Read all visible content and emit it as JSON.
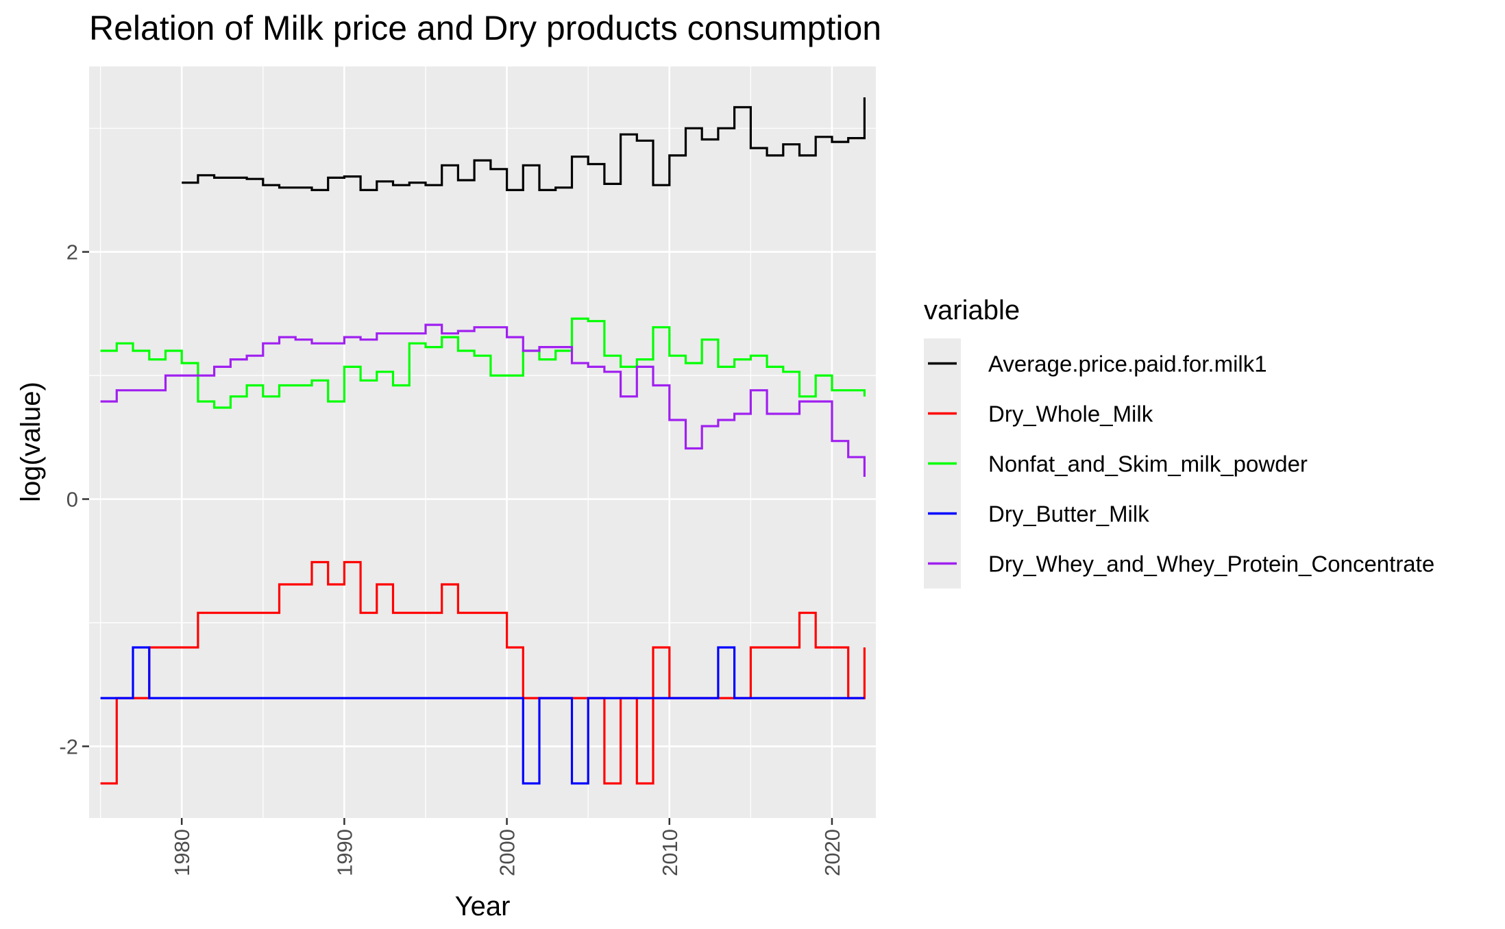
{
  "chart_data": {
    "type": "line",
    "step": "post",
    "title": "Relation of Milk price and Dry products consumption",
    "xlabel": "Year",
    "ylabel": "log(value)",
    "xlim": [
      1974.3,
      2022.7
    ],
    "ylim": [
      -2.58,
      3.5
    ],
    "xticks": [
      1980,
      1990,
      2000,
      2010,
      2020
    ],
    "yticks": [
      -2,
      0,
      2
    ],
    "grid": true,
    "legend": {
      "title": "variable",
      "position": "right"
    },
    "series": [
      {
        "name": "Average.price.paid.for.milk1",
        "color": "#000000",
        "x": [
          1980,
          1981,
          1982,
          1983,
          1984,
          1985,
          1986,
          1987,
          1988,
          1989,
          1990,
          1991,
          1992,
          1993,
          1994,
          1995,
          1996,
          1997,
          1998,
          1999,
          2000,
          2001,
          2002,
          2003,
          2004,
          2005,
          2006,
          2007,
          2008,
          2009,
          2010,
          2011,
          2012,
          2013,
          2014,
          2015,
          2016,
          2017,
          2018,
          2019,
          2020,
          2021,
          2022
        ],
        "values": [
          2.56,
          2.62,
          2.6,
          2.6,
          2.59,
          2.54,
          2.52,
          2.52,
          2.5,
          2.6,
          2.61,
          2.5,
          2.57,
          2.54,
          2.56,
          2.54,
          2.7,
          2.58,
          2.74,
          2.67,
          2.5,
          2.7,
          2.5,
          2.52,
          2.77,
          2.71,
          2.55,
          2.95,
          2.9,
          2.54,
          2.78,
          3.0,
          2.91,
          3.0,
          3.17,
          2.84,
          2.78,
          2.87,
          2.78,
          2.93,
          2.89,
          2.92,
          3.25
        ]
      },
      {
        "name": "Dry_Whole_Milk",
        "color": "#ff0000",
        "x": [
          1975,
          1976,
          1977,
          1978,
          1979,
          1980,
          1981,
          1982,
          1983,
          1984,
          1985,
          1986,
          1987,
          1988,
          1989,
          1990,
          1991,
          1992,
          1993,
          1994,
          1995,
          1996,
          1997,
          1998,
          1999,
          2000,
          2001,
          2002,
          2003,
          2004,
          2005,
          2006,
          2007,
          2008,
          2009,
          2010,
          2011,
          2012,
          2013,
          2014,
          2015,
          2016,
          2017,
          2018,
          2019,
          2020,
          2021,
          2022
        ],
        "values": [
          -2.3,
          -1.61,
          -1.61,
          -1.2,
          -1.2,
          -1.2,
          -0.92,
          -0.92,
          -0.92,
          -0.92,
          -0.92,
          -0.69,
          -0.69,
          -0.51,
          -0.69,
          -0.51,
          -0.92,
          -0.69,
          -0.92,
          -0.92,
          -0.92,
          -0.69,
          -0.92,
          -0.92,
          -0.92,
          -1.2,
          -1.61,
          -1.61,
          -1.61,
          -1.61,
          -1.61,
          -2.3,
          -1.61,
          -2.3,
          -1.2,
          -1.61,
          -1.61,
          -1.61,
          -1.61,
          -1.61,
          -1.2,
          -1.2,
          -1.2,
          -0.92,
          -1.2,
          -1.2,
          -1.61,
          -1.2
        ]
      },
      {
        "name": "Nonfat_and_Skim_milk_powder",
        "color": "#00ff00",
        "x": [
          1975,
          1976,
          1977,
          1978,
          1979,
          1980,
          1981,
          1982,
          1983,
          1984,
          1985,
          1986,
          1987,
          1988,
          1989,
          1990,
          1991,
          1992,
          1993,
          1994,
          1995,
          1996,
          1997,
          1998,
          1999,
          2000,
          2001,
          2002,
          2003,
          2004,
          2005,
          2006,
          2007,
          2008,
          2009,
          2010,
          2011,
          2012,
          2013,
          2014,
          2015,
          2016,
          2017,
          2018,
          2019,
          2020,
          2021,
          2022
        ],
        "values": [
          1.2,
          1.26,
          1.2,
          1.13,
          1.2,
          1.1,
          0.79,
          0.74,
          0.83,
          0.92,
          0.83,
          0.92,
          0.92,
          0.96,
          0.79,
          1.07,
          0.96,
          1.03,
          0.92,
          1.26,
          1.23,
          1.31,
          1.2,
          1.16,
          1.0,
          1.0,
          1.2,
          1.13,
          1.2,
          1.46,
          1.44,
          1.16,
          1.07,
          1.13,
          1.39,
          1.16,
          1.1,
          1.29,
          1.07,
          1.13,
          1.16,
          1.07,
          1.03,
          0.83,
          1.0,
          0.88,
          0.88,
          0.83
        ]
      },
      {
        "name": "Dry_Butter_Milk",
        "color": "#0000ff",
        "x": [
          1975,
          1976,
          1977,
          1978,
          1979,
          1980,
          1981,
          1982,
          1983,
          1984,
          1985,
          1986,
          1987,
          1988,
          1989,
          1990,
          1991,
          1992,
          1993,
          1994,
          1995,
          1996,
          1997,
          1998,
          1999,
          2000,
          2001,
          2002,
          2003,
          2004,
          2005,
          2006,
          2007,
          2008,
          2009,
          2010,
          2011,
          2012,
          2013,
          2014,
          2015,
          2016,
          2017,
          2018,
          2019,
          2020,
          2021,
          2022
        ],
        "values": [
          -1.61,
          -1.61,
          -1.2,
          -1.61,
          -1.61,
          -1.61,
          -1.61,
          -1.61,
          -1.61,
          -1.61,
          -1.61,
          -1.61,
          -1.61,
          -1.61,
          -1.61,
          -1.61,
          -1.61,
          -1.61,
          -1.61,
          -1.61,
          -1.61,
          -1.61,
          -1.61,
          -1.61,
          -1.61,
          -1.61,
          -2.3,
          -1.61,
          -1.61,
          -2.3,
          -1.61,
          -1.61,
          -1.61,
          -1.61,
          -1.61,
          -1.61,
          -1.61,
          -1.61,
          -1.2,
          -1.61,
          -1.61,
          -1.61,
          -1.61,
          -1.61,
          -1.61,
          -1.61,
          -1.61,
          -1.61
        ]
      },
      {
        "name": "Dry_Whey_and_Whey_Protein_Concentrate",
        "color": "#a020f0",
        "x": [
          1975,
          1976,
          1977,
          1978,
          1979,
          1980,
          1981,
          1982,
          1983,
          1984,
          1985,
          1986,
          1987,
          1988,
          1989,
          1990,
          1991,
          1992,
          1993,
          1994,
          1995,
          1996,
          1997,
          1998,
          1999,
          2000,
          2001,
          2002,
          2003,
          2004,
          2005,
          2006,
          2007,
          2008,
          2009,
          2010,
          2011,
          2012,
          2013,
          2014,
          2015,
          2016,
          2017,
          2018,
          2019,
          2020,
          2021,
          2022
        ],
        "values": [
          0.79,
          0.88,
          0.88,
          0.88,
          1.0,
          1.0,
          1.0,
          1.07,
          1.13,
          1.16,
          1.26,
          1.31,
          1.29,
          1.26,
          1.26,
          1.31,
          1.29,
          1.34,
          1.34,
          1.34,
          1.41,
          1.34,
          1.36,
          1.39,
          1.39,
          1.31,
          1.2,
          1.23,
          1.23,
          1.1,
          1.07,
          1.03,
          0.83,
          1.07,
          0.92,
          0.64,
          0.41,
          0.59,
          0.64,
          0.69,
          0.88,
          0.69,
          0.69,
          0.79,
          0.79,
          0.47,
          0.34,
          0.18
        ]
      }
    ]
  }
}
